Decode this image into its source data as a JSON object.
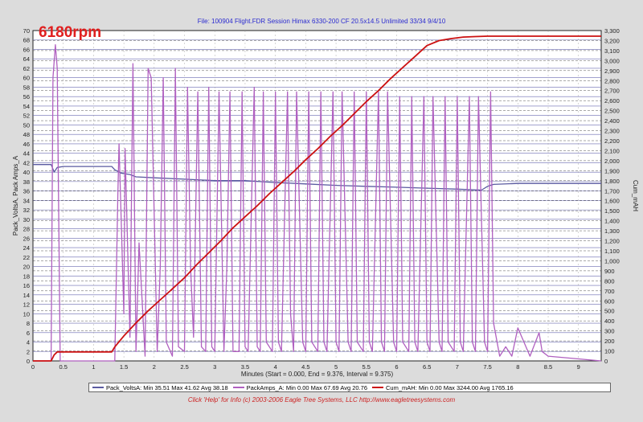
{
  "header": {
    "file_title": "File: 100904 Flight.FDR    Session Himax 6330-200 CF 20.5x14.5 Unlimited 33/34 9/4/10",
    "overlay_label": "6180rpm"
  },
  "footer": {
    "text": "Click 'Help' for Info (c) 2003-2006 Eagle Tree Systems, LLC     http://www.eagletreesystems.com"
  },
  "legend": {
    "items": [
      {
        "text": "Pack_VoltsA:  Min 35.51   Max 41.62   Avg 38.18",
        "color": "#5a5aa0"
      },
      {
        "text": "PackAmps_A:  Min 0.00   Max 67.69   Avg 20.76",
        "color": "#b060c0"
      },
      {
        "text": "Cum_mAH:  Min 0.00   Max 3244.00   Avg 1765.16",
        "color": "#cc1111"
      }
    ]
  },
  "chart_data": {
    "type": "line",
    "title": "File: 100904 Flight.FDR    Session Himax 6330-200 CF 20.5x14.5 Unlimited 33/34 9/4/10",
    "xlabel": "Minutes (Start = 0.000, End = 9.376, Interval = 9.375)",
    "ylabel_left": "Pack_VoltsA, Pack Amps_A",
    "ylabel_right": "Cum_mAH",
    "xlim": [
      0,
      9.375
    ],
    "ylim_left": [
      0,
      70
    ],
    "ylim_right": [
      0,
      3300
    ],
    "x_ticks": [
      "0",
      "0.5",
      "1",
      "1.5",
      "2",
      "2.5",
      "3",
      "3.5",
      "4",
      "4.5",
      "5",
      "5.5",
      "6",
      "6.5",
      "7",
      "7.5",
      "8",
      "8.5",
      "9"
    ],
    "y_left_ticks": [
      "0",
      "2",
      "4",
      "6",
      "8",
      "10",
      "12",
      "14",
      "16",
      "18",
      "20",
      "22",
      "24",
      "26",
      "28",
      "30",
      "32",
      "34",
      "36",
      "38",
      "40",
      "42",
      "44",
      "46",
      "48",
      "50",
      "52",
      "54",
      "56",
      "58",
      "60",
      "62",
      "64",
      "66",
      "68",
      "70"
    ],
    "y_right_ticks": [
      "0",
      "100",
      "200",
      "300",
      "400",
      "500",
      "600",
      "700",
      "800",
      "900",
      "1,000",
      "1,100",
      "1,200",
      "1,300",
      "1,400",
      "1,500",
      "1,600",
      "1,700",
      "1,800",
      "1,900",
      "2,000",
      "2,100",
      "2,200",
      "2,300",
      "2,400",
      "2,500",
      "2,600",
      "2,700",
      "2,800",
      "2,900",
      "3,000",
      "3,100",
      "3,200",
      "3,300"
    ],
    "grid": true,
    "legend_position": "bottom",
    "series": [
      {
        "name": "Pack_VoltsA",
        "axis": "left",
        "color": "#5a5aa0",
        "x": [
          0,
          0.3,
          0.35,
          0.4,
          0.5,
          1.3,
          1.35,
          1.45,
          1.6,
          1.7,
          2.0,
          2.5,
          3.0,
          3.5,
          4.0,
          4.5,
          5.0,
          5.5,
          6.0,
          6.5,
          7.0,
          7.4,
          7.5,
          7.6,
          8.0,
          9.375
        ],
        "values": [
          41.6,
          41.6,
          40.0,
          41.0,
          41.2,
          41.2,
          40.5,
          39.8,
          39.5,
          39.0,
          38.8,
          38.5,
          38.2,
          38.2,
          37.8,
          37.5,
          37.2,
          37.0,
          36.8,
          36.6,
          36.4,
          36.2,
          37.0,
          37.4,
          37.6,
          37.6
        ]
      },
      {
        "name": "PackAmps_A",
        "axis": "left",
        "color": "#b060c0",
        "x": [
          0,
          0.3,
          0.33,
          0.37,
          0.4,
          0.45,
          1.35,
          1.4,
          1.42,
          1.5,
          1.52,
          1.55,
          1.6,
          1.65,
          1.7,
          1.75,
          1.85,
          1.9,
          1.95,
          2.05,
          2.1,
          2.15,
          2.2,
          2.3,
          2.35,
          2.4,
          2.5,
          2.55,
          2.6,
          2.65,
          2.72,
          2.78,
          2.85,
          2.9,
          2.95,
          3.0,
          3.07,
          3.15,
          3.2,
          3.25,
          3.3,
          3.4,
          3.45,
          3.5,
          3.55,
          3.65,
          3.7,
          3.75,
          3.8,
          3.85,
          3.95,
          4.0,
          4.05,
          4.1,
          4.2,
          4.25,
          4.3,
          4.35,
          4.45,
          4.5,
          4.55,
          4.6,
          4.7,
          4.75,
          4.8,
          4.85,
          4.95,
          5.0,
          5.05,
          5.1,
          5.2,
          5.25,
          5.3,
          5.35,
          5.45,
          5.5,
          5.55,
          5.6,
          5.7,
          5.75,
          5.8,
          5.85,
          5.95,
          6.0,
          6.05,
          6.1,
          6.2,
          6.25,
          6.3,
          6.35,
          6.45,
          6.5,
          6.55,
          6.6,
          6.7,
          6.75,
          6.8,
          6.85,
          6.95,
          7.0,
          7.05,
          7.1,
          7.2,
          7.25,
          7.3,
          7.35,
          7.45,
          7.5,
          7.55,
          7.6,
          7.7,
          7.8,
          7.9,
          8.0,
          8.2,
          8.35,
          8.4,
          8.5,
          9.375
        ],
        "values": [
          0,
          0,
          60,
          67,
          62,
          0,
          0,
          35,
          46,
          10,
          45,
          30,
          5,
          63,
          2,
          25,
          1,
          62,
          60,
          2,
          20,
          60,
          4,
          1,
          62,
          3,
          2,
          58,
          20,
          5,
          57,
          3,
          2,
          58,
          3,
          2,
          57,
          2,
          20,
          57,
          2,
          2,
          57,
          3,
          2,
          58,
          3,
          2,
          57,
          4,
          2,
          57,
          4,
          2,
          57,
          10,
          2,
          57,
          4,
          2,
          57,
          4,
          2,
          57,
          4,
          2,
          57,
          4,
          2,
          57,
          4,
          2,
          57,
          4,
          2,
          57,
          4,
          2,
          57,
          4,
          2,
          57,
          4,
          2,
          56,
          4,
          2,
          56,
          4,
          2,
          56,
          4,
          2,
          56,
          4,
          2,
          56,
          4,
          2,
          56,
          4,
          2,
          56,
          4,
          2,
          56,
          4,
          2,
          57,
          8,
          1,
          3,
          1,
          7,
          1,
          6,
          2,
          1,
          0
        ]
      },
      {
        "name": "Cum_mAH",
        "axis": "right",
        "color": "#cc1111",
        "x": [
          0,
          0.3,
          0.35,
          0.4,
          1.3,
          1.35,
          1.5,
          1.7,
          1.9,
          2.1,
          2.3,
          2.5,
          2.7,
          2.9,
          3.1,
          3.3,
          3.5,
          3.7,
          3.9,
          4.1,
          4.3,
          4.5,
          4.7,
          4.9,
          5.1,
          5.3,
          5.5,
          5.7,
          5.9,
          6.1,
          6.3,
          6.5,
          6.7,
          6.9,
          7.1,
          7.3,
          7.5,
          8.0,
          8.4,
          9.375
        ],
        "values": [
          0,
          0,
          60,
          90,
          90,
          140,
          250,
          380,
          500,
          610,
          720,
          830,
          960,
          1080,
          1200,
          1330,
          1440,
          1550,
          1670,
          1780,
          1890,
          2010,
          2120,
          2240,
          2350,
          2470,
          2590,
          2700,
          2820,
          2930,
          3040,
          3150,
          3200,
          3220,
          3235,
          3240,
          3244,
          3244,
          3244,
          3244
        ]
      }
    ]
  }
}
